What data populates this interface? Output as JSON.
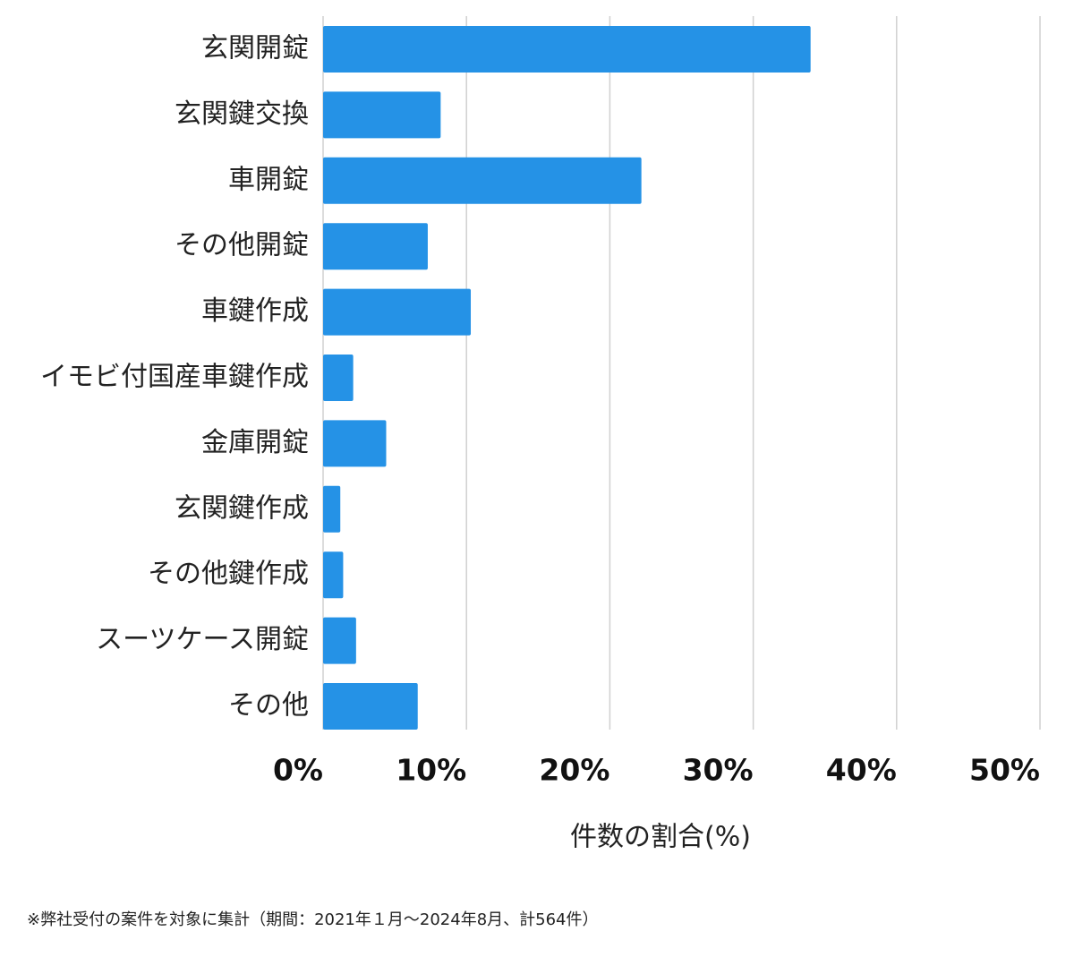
{
  "chart_data": {
    "type": "bar",
    "orientation": "horizontal",
    "x_label": "件数の割合(%)",
    "footnote": "※弊社受付の案件を対象に集計（期間：2021年１月〜2024年8月、計564件）",
    "categories": [
      "玄関開錠",
      "玄関鍵交換",
      "車開錠",
      "その他開錠",
      "車鍵作成",
      "イモビ付国産車鍵作成",
      "金庫開錠",
      "玄関鍵作成",
      "その他鍵作成",
      "スーツケース開錠",
      "その他"
    ],
    "values": [
      34.0,
      8.2,
      22.2,
      7.3,
      10.3,
      2.1,
      4.4,
      1.2,
      1.4,
      2.3,
      6.6
    ],
    "color": "#2592e6",
    "xlim": [
      0,
      50
    ],
    "xticks": [
      {
        "value": 0,
        "label": "0%"
      },
      {
        "value": 10,
        "label": "10%"
      },
      {
        "value": 20,
        "label": "20%"
      },
      {
        "value": 30,
        "label": "30%"
      },
      {
        "value": 40,
        "label": "40%"
      },
      {
        "value": 50,
        "label": "50%"
      }
    ],
    "grid": true
  }
}
